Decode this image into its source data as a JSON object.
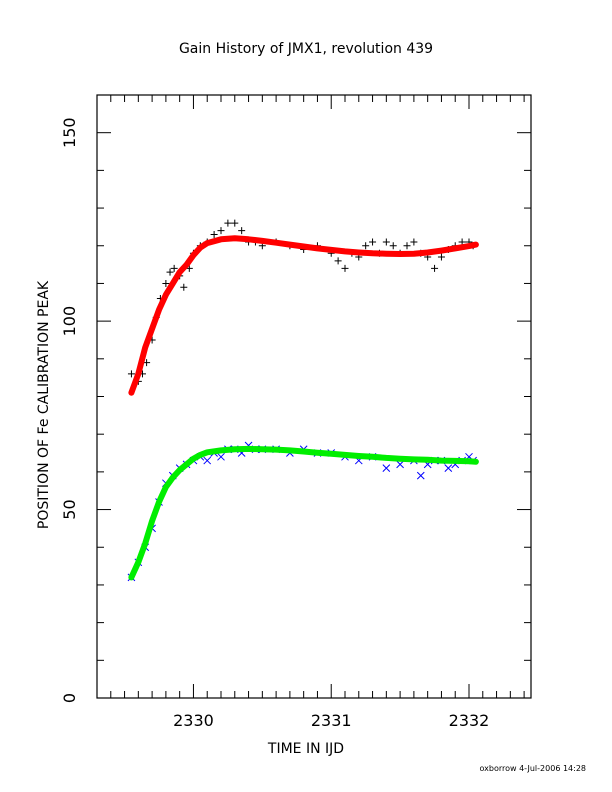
{
  "chart_data": {
    "type": "scatter",
    "title": "Gain History of JMX1, revolution 439",
    "xlabel": "TIME IN IJD",
    "ylabel": "POSITION OF Fe CALIBRATION PEAK",
    "xlim": [
      2329.3,
      2332.45
    ],
    "ylim": [
      0,
      160
    ],
    "xticks": [
      2330,
      2331,
      2332
    ],
    "yticks": [
      0,
      50,
      100,
      150
    ],
    "grid": false,
    "footer": "oxborrow   4-Jul-2006 14:28",
    "series": [
      {
        "kind": "scatter-plus",
        "color": "#000000",
        "points": [
          [
            2329.55,
            86
          ],
          [
            2329.6,
            84
          ],
          [
            2329.63,
            86
          ],
          [
            2329.66,
            89
          ],
          [
            2329.7,
            95
          ],
          [
            2329.73,
            101
          ],
          [
            2329.76,
            106
          ],
          [
            2329.8,
            110
          ],
          [
            2329.83,
            113
          ],
          [
            2329.86,
            114
          ],
          [
            2329.9,
            112
          ],
          [
            2329.93,
            109
          ],
          [
            2329.97,
            114
          ],
          [
            2330.0,
            118
          ],
          [
            2330.05,
            120
          ],
          [
            2330.1,
            121
          ],
          [
            2330.15,
            123
          ],
          [
            2330.2,
            124
          ],
          [
            2330.25,
            126
          ],
          [
            2330.3,
            126
          ],
          [
            2330.35,
            124
          ],
          [
            2330.4,
            121
          ],
          [
            2330.45,
            121
          ],
          [
            2330.5,
            120
          ],
          [
            2330.6,
            121
          ],
          [
            2330.7,
            120
          ],
          [
            2330.8,
            119
          ],
          [
            2330.9,
            120
          ],
          [
            2331.0,
            118
          ],
          [
            2331.05,
            116
          ],
          [
            2331.1,
            114
          ],
          [
            2331.15,
            118
          ],
          [
            2331.2,
            117
          ],
          [
            2331.25,
            120
          ],
          [
            2331.3,
            121
          ],
          [
            2331.35,
            118
          ],
          [
            2331.4,
            121
          ],
          [
            2331.45,
            120
          ],
          [
            2331.5,
            118
          ],
          [
            2331.55,
            120
          ],
          [
            2331.6,
            121
          ],
          [
            2331.65,
            118
          ],
          [
            2331.7,
            117
          ],
          [
            2331.75,
            114
          ],
          [
            2331.8,
            117
          ],
          [
            2331.85,
            119
          ],
          [
            2331.9,
            120
          ],
          [
            2331.95,
            121
          ],
          [
            2332.0,
            121
          ],
          [
            2332.03,
            120
          ]
        ]
      },
      {
        "kind": "scatter-cross",
        "color": "#0000ff",
        "points": [
          [
            2329.55,
            32
          ],
          [
            2329.6,
            36
          ],
          [
            2329.65,
            40
          ],
          [
            2329.7,
            45
          ],
          [
            2329.75,
            52
          ],
          [
            2329.8,
            57
          ],
          [
            2329.85,
            59
          ],
          [
            2329.9,
            61
          ],
          [
            2329.95,
            62
          ],
          [
            2330.0,
            63
          ],
          [
            2330.05,
            64
          ],
          [
            2330.1,
            63
          ],
          [
            2330.15,
            65
          ],
          [
            2330.2,
            64
          ],
          [
            2330.25,
            66
          ],
          [
            2330.3,
            66
          ],
          [
            2330.35,
            65
          ],
          [
            2330.4,
            67
          ],
          [
            2330.45,
            66
          ],
          [
            2330.5,
            66
          ],
          [
            2330.6,
            66
          ],
          [
            2330.7,
            65
          ],
          [
            2330.8,
            66
          ],
          [
            2330.9,
            65
          ],
          [
            2331.0,
            65
          ],
          [
            2331.1,
            64
          ],
          [
            2331.2,
            63
          ],
          [
            2331.3,
            64
          ],
          [
            2331.4,
            61
          ],
          [
            2331.5,
            62
          ],
          [
            2331.6,
            63
          ],
          [
            2331.65,
            59
          ],
          [
            2331.7,
            62
          ],
          [
            2331.75,
            63
          ],
          [
            2331.8,
            63
          ],
          [
            2331.85,
            61
          ],
          [
            2331.9,
            62
          ],
          [
            2331.95,
            63
          ],
          [
            2332.0,
            64
          ],
          [
            2332.03,
            63
          ]
        ]
      },
      {
        "kind": "fit-line",
        "color": "#ff0000",
        "points": [
          [
            2329.55,
            81
          ],
          [
            2329.6,
            86
          ],
          [
            2329.65,
            93
          ],
          [
            2329.7,
            98
          ],
          [
            2329.75,
            103
          ],
          [
            2329.8,
            107
          ],
          [
            2329.85,
            110
          ],
          [
            2329.9,
            113
          ],
          [
            2329.95,
            115
          ],
          [
            2330.0,
            117.5
          ],
          [
            2330.05,
            119.5
          ],
          [
            2330.1,
            120.7
          ],
          [
            2330.2,
            121.7
          ],
          [
            2330.3,
            122
          ],
          [
            2330.4,
            121.7
          ],
          [
            2330.5,
            121.3
          ],
          [
            2330.6,
            120.8
          ],
          [
            2330.7,
            120.3
          ],
          [
            2330.8,
            119.8
          ],
          [
            2330.9,
            119.3
          ],
          [
            2331.0,
            118.9
          ],
          [
            2331.1,
            118.5
          ],
          [
            2331.2,
            118.2
          ],
          [
            2331.3,
            118
          ],
          [
            2331.4,
            117.9
          ],
          [
            2331.5,
            117.8
          ],
          [
            2331.6,
            117.9
          ],
          [
            2331.7,
            118.2
          ],
          [
            2331.8,
            118.7
          ],
          [
            2331.9,
            119.3
          ],
          [
            2332.0,
            119.9
          ],
          [
            2332.05,
            120.3
          ]
        ]
      },
      {
        "kind": "fit-line",
        "color": "#00ee00",
        "points": [
          [
            2329.55,
            32
          ],
          [
            2329.6,
            36
          ],
          [
            2329.65,
            41
          ],
          [
            2329.7,
            47
          ],
          [
            2329.75,
            52
          ],
          [
            2329.8,
            56
          ],
          [
            2329.85,
            58.5
          ],
          [
            2329.9,
            60.5
          ],
          [
            2329.95,
            62
          ],
          [
            2330.0,
            63.5
          ],
          [
            2330.05,
            64.5
          ],
          [
            2330.1,
            65.2
          ],
          [
            2330.2,
            65.7
          ],
          [
            2330.3,
            66
          ],
          [
            2330.4,
            66.1
          ],
          [
            2330.5,
            66
          ],
          [
            2330.6,
            65.9
          ],
          [
            2330.7,
            65.7
          ],
          [
            2330.8,
            65.4
          ],
          [
            2330.9,
            65.1
          ],
          [
            2331.0,
            64.8
          ],
          [
            2331.1,
            64.5
          ],
          [
            2331.2,
            64.2
          ],
          [
            2331.3,
            64
          ],
          [
            2331.4,
            63.7
          ],
          [
            2331.5,
            63.5
          ],
          [
            2331.6,
            63.3
          ],
          [
            2331.7,
            63.2
          ],
          [
            2331.8,
            63
          ],
          [
            2331.9,
            62.9
          ],
          [
            2332.0,
            62.8
          ],
          [
            2332.05,
            62.7
          ]
        ]
      }
    ]
  }
}
